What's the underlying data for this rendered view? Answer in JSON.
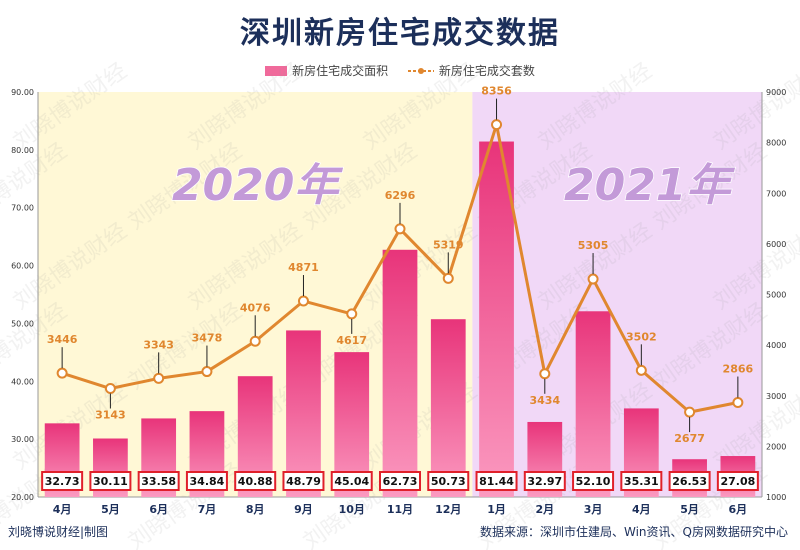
{
  "title": "深圳新房住宅成交数据",
  "footer": {
    "left": "刘晓博说财经|制图",
    "right": "数据来源：深圳市住建局、Win资讯、Q房网数据研究中心"
  },
  "watermark": "刘晓博说财经",
  "colors": {
    "bar": "#f06a9b",
    "line": "#e0872f",
    "bg_2020": "#fff8d6",
    "bg_2021": "#f1d8f7",
    "year_text": "#c39ad8",
    "label_border": "#e0202a"
  },
  "chart_data": {
    "type": "bar",
    "title": "深圳新房住宅成交数据",
    "categories": [
      "4月",
      "5月",
      "6月",
      "7月",
      "8月",
      "9月",
      "10月",
      "11月",
      "12月",
      "1月",
      "2月",
      "3月",
      "4月",
      "5月",
      "6月"
    ],
    "period_labels": [
      {
        "text": "2020年",
        "from_index": 0,
        "to_index": 8
      },
      {
        "text": "2021年",
        "from_index": 9,
        "to_index": 14
      }
    ],
    "series": [
      {
        "name": "新房住宅成交面积",
        "type": "bar",
        "axis": "left",
        "values": [
          32.73,
          30.11,
          33.58,
          34.84,
          40.88,
          48.79,
          45.04,
          62.73,
          50.73,
          81.44,
          32.97,
          52.1,
          35.31,
          26.53,
          27.08
        ],
        "labels": [
          "32.73",
          "30.11",
          "33.58",
          "34.84",
          "40.88",
          "48.79",
          "45.04",
          "62.73",
          "50.73",
          "81.44",
          "32.97",
          "52.10",
          "35.31",
          "26.53",
          "27.08"
        ]
      },
      {
        "name": "新房住宅成交套数",
        "type": "line",
        "axis": "right",
        "values": [
          3446,
          3143,
          3343,
          3478,
          4076,
          4871,
          4617,
          6296,
          5319,
          8356,
          3434,
          5305,
          3502,
          2677,
          2866
        ],
        "labels": [
          "3446",
          "3143",
          "3343",
          "3478",
          "4076",
          "4871",
          "4617",
          "6296",
          "5319",
          "8356",
          "3434",
          "5305",
          "3502",
          "2677",
          "2866"
        ]
      }
    ],
    "y_left": {
      "range": [
        20,
        90
      ],
      "ticks": [
        20,
        30,
        40,
        50,
        60,
        70,
        80,
        90
      ],
      "tick_labels": [
        "20.00",
        "30.00",
        "40.00",
        "50.00",
        "60.00",
        "70.00",
        "80.00",
        "90.00"
      ]
    },
    "y_right": {
      "range": [
        1000,
        9000
      ],
      "ticks": [
        1000,
        2000,
        3000,
        4000,
        5000,
        6000,
        7000,
        8000,
        9000
      ],
      "tick_labels": [
        "1000",
        "2000",
        "3000",
        "4000",
        "5000",
        "6000",
        "7000",
        "8000",
        "9000"
      ]
    },
    "grid": false,
    "legend": "top"
  }
}
